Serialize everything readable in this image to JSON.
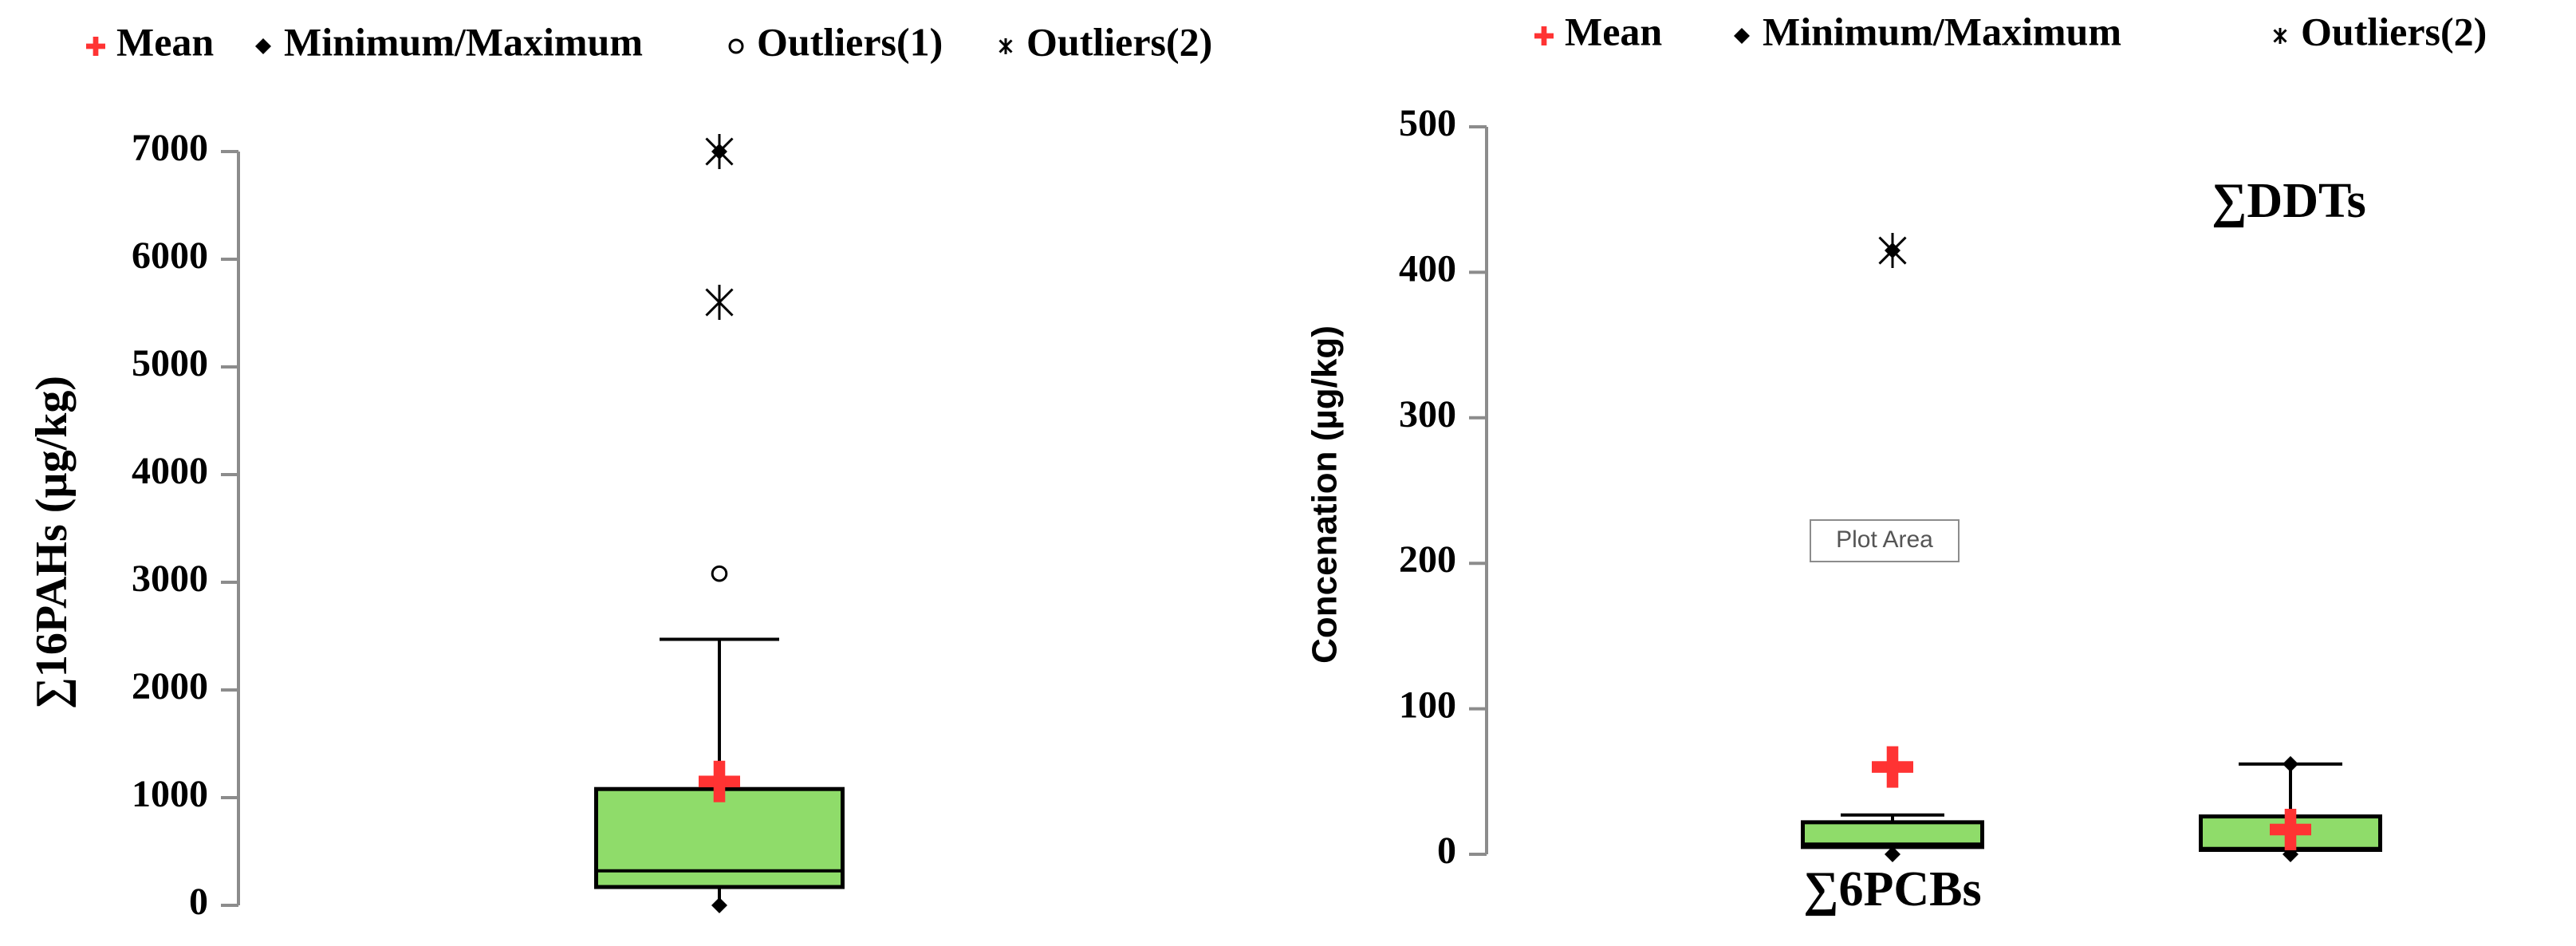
{
  "chart_data": [
    {
      "type": "box",
      "ylabel": "∑16PAHs (µg/kg)",
      "ylim": [
        0,
        7000
      ],
      "yticks": [
        0,
        1000,
        2000,
        3000,
        4000,
        5000,
        6000,
        7000
      ],
      "legend": [
        {
          "label": "Mean",
          "symbol": "plus"
        },
        {
          "label": "Minimum/Maximum",
          "symbol": "diamond"
        },
        {
          "label": "Outliers(1)",
          "symbol": "circle"
        },
        {
          "label": "Outliers(2)",
          "symbol": "asterisk"
        }
      ],
      "box_color": "#8fdc6a",
      "mean_color": "#ff3333",
      "boxes": [
        {
          "min": 0,
          "q1": 170,
          "median": 320,
          "q3": 1080,
          "whisker_high": 2470,
          "max": 7000,
          "mean": 1150,
          "outliers1": [
            3080
          ],
          "outliers2": [
            5600,
            7000
          ]
        }
      ]
    },
    {
      "type": "box",
      "ylabel": "Concenation (µg/kg)",
      "ylim": [
        0,
        500
      ],
      "yticks": [
        0,
        100,
        200,
        300,
        400,
        500
      ],
      "legend": [
        {
          "label": "Mean",
          "symbol": "plus"
        },
        {
          "label": "Minimum/Maximum",
          "symbol": "diamond"
        },
        {
          "label": "Outliers(2)",
          "symbol": "asterisk"
        }
      ],
      "box_color": "#8fdc6a",
      "mean_color": "#ff3333",
      "tooltip": "Plot Area",
      "boxes": [
        {
          "name": "∑6PCBs",
          "min": 0,
          "q1": 5,
          "median": 7,
          "q3": 22,
          "whisker_high": 27,
          "max": 415,
          "mean": 60,
          "outliers1": [],
          "outliers2": [
            415
          ]
        },
        {
          "name": "∑DDTs",
          "min": 0,
          "q1": 3,
          "median": 4,
          "q3": 26,
          "whisker_high": 62,
          "max": 62,
          "mean": 17,
          "outliers1": [],
          "outliers2": []
        }
      ]
    }
  ]
}
